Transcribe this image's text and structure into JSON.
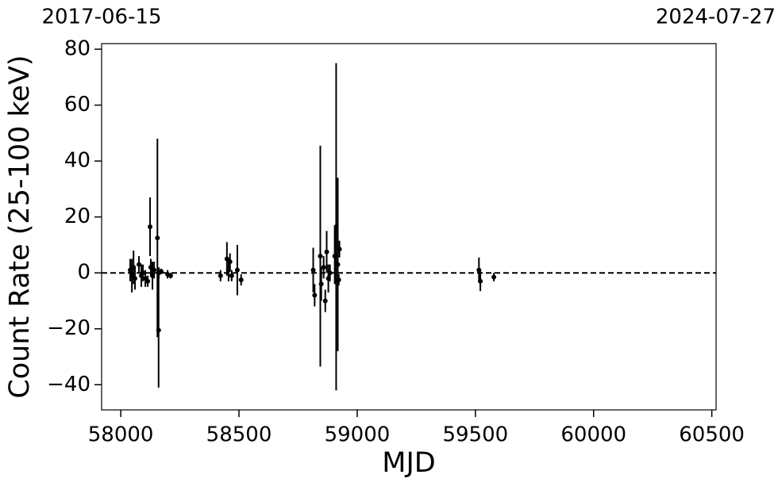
{
  "chart_data": {
    "type": "errorbar-scatter",
    "xlabel": "MJD",
    "ylabel": "Count Rate (25-100 keV)",
    "xlim": [
      57919,
      60518
    ],
    "ylim": [
      -49,
      82
    ],
    "xticks": [
      58000,
      58500,
      59000,
      59500,
      60000,
      60500
    ],
    "yticks": [
      {
        "value": -40,
        "label": "−40"
      },
      {
        "value": -20,
        "label": "−20"
      },
      0,
      20,
      40,
      60,
      80
    ],
    "x2ticks": [
      {
        "value": 57919,
        "label": "2017-06-15"
      },
      {
        "value": 60518,
        "label": "2024-07-27"
      }
    ],
    "reference_line": 0,
    "color": "#000000",
    "x": [
      58040,
      58047,
      58054,
      58060,
      58077,
      58087,
      58094,
      58104,
      58114,
      58124,
      58127,
      58134,
      58141,
      58155,
      58160,
      58161,
      58171,
      58198,
      58211,
      58422,
      58449,
      58456,
      58462,
      58469,
      58493,
      58509,
      58814,
      58820,
      58844,
      58848,
      58858,
      58865,
      58871,
      58878,
      58885,
      58905,
      58911,
      58918,
      58922,
      58925,
      59515,
      59521,
      59578
    ],
    "y": [
      1,
      -1,
      2,
      -2,
      3,
      -1,
      0,
      -2,
      -3,
      16.5,
      2,
      -1,
      1,
      12.5,
      -20.5,
      0,
      0.5,
      -0.5,
      -1,
      -1,
      5,
      1,
      4,
      -1,
      1,
      -2.5,
      1,
      -8,
      6,
      -4,
      2,
      -10,
      7.5,
      -2,
      0,
      6,
      16.5,
      3,
      -2.5,
      8.5,
      1,
      -3,
      -1.5
    ],
    "err": [
      4,
      6,
      6,
      4,
      3,
      4,
      3,
      3,
      2,
      10.5,
      3,
      5,
      3,
      35.5,
      20.5,
      2,
      1,
      1.5,
      1,
      2,
      6,
      4,
      3,
      2,
      9,
      2,
      8,
      4,
      39.5,
      6,
      4,
      4,
      7.5,
      5,
      3,
      10,
      58.5,
      31,
      2,
      3,
      4.5,
      3.5,
      1.5
    ]
  }
}
